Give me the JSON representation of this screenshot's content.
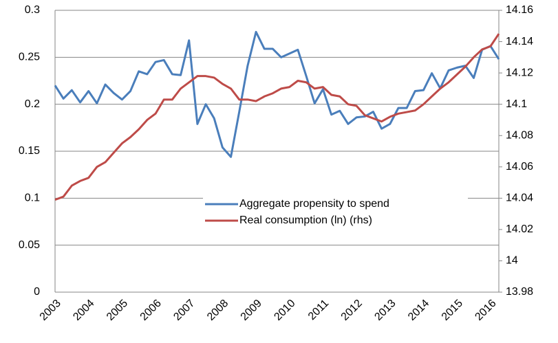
{
  "chart_data": {
    "type": "line",
    "categories": [
      "2003",
      null,
      null,
      null,
      "2004",
      null,
      null,
      null,
      "2005",
      null,
      null,
      null,
      "2006",
      null,
      null,
      null,
      "2007",
      null,
      null,
      null,
      "2008",
      null,
      null,
      null,
      "2009",
      null,
      null,
      null,
      "2010",
      null,
      null,
      null,
      "2011",
      null,
      null,
      null,
      "2012",
      null,
      null,
      null,
      "2013",
      null,
      null,
      null,
      "2014",
      null,
      null,
      null,
      "2015",
      null,
      null,
      null,
      "2016",
      null
    ],
    "series": [
      {
        "name": "Aggregate propensity to spend",
        "color": "#4a7ebb",
        "values": [
          0.22,
          0.206,
          0.215,
          0.202,
          0.214,
          0.201,
          0.221,
          0.212,
          0.205,
          0.214,
          0.235,
          0.232,
          0.245,
          0.247,
          0.232,
          0.231,
          0.268,
          0.179,
          0.2,
          0.185,
          0.154,
          0.144,
          0.192,
          0.241,
          0.277,
          0.259,
          0.259,
          0.25,
          0.254,
          0.258,
          0.23,
          0.201,
          0.216,
          0.189,
          0.193,
          0.179,
          0.186,
          0.187,
          0.192,
          0.174,
          0.179,
          0.196,
          0.196,
          0.214,
          0.215,
          0.233,
          0.217,
          0.236,
          0.239,
          0.241,
          0.228,
          0.258,
          0.262,
          0.248
        ]
      },
      {
        "name": "Real consumption (ln) (rhs)",
        "color": "#be4b48",
        "axis": "y2",
        "values": [
          14.039,
          14.041,
          14.048,
          14.051,
          14.053,
          14.06,
          14.063,
          14.069,
          14.075,
          14.079,
          14.084,
          14.09,
          14.094,
          14.103,
          14.103,
          14.11,
          14.114,
          14.118,
          14.118,
          14.117,
          14.113,
          14.11,
          14.103,
          14.103,
          14.102,
          14.105,
          14.107,
          14.11,
          14.111,
          14.115,
          14.114,
          14.11,
          14.111,
          14.106,
          14.105,
          14.1,
          14.099,
          14.093,
          14.091,
          14.089,
          14.092,
          14.094,
          14.095,
          14.096,
          14.1,
          14.105,
          14.11,
          14.114,
          14.119,
          14.124,
          14.13,
          14.135,
          14.137,
          14.145
        ]
      }
    ],
    "ylim": [
      0,
      0.3
    ],
    "yticks": [
      0,
      0.05,
      0.1,
      0.15,
      0.2,
      0.25,
      0.3
    ],
    "y2lim": [
      13.98,
      14.16
    ],
    "y2ticks": [
      13.98,
      14,
      14.02,
      14.04,
      14.06,
      14.08,
      14.1,
      14.12,
      14.14,
      14.16
    ],
    "grid": true
  }
}
